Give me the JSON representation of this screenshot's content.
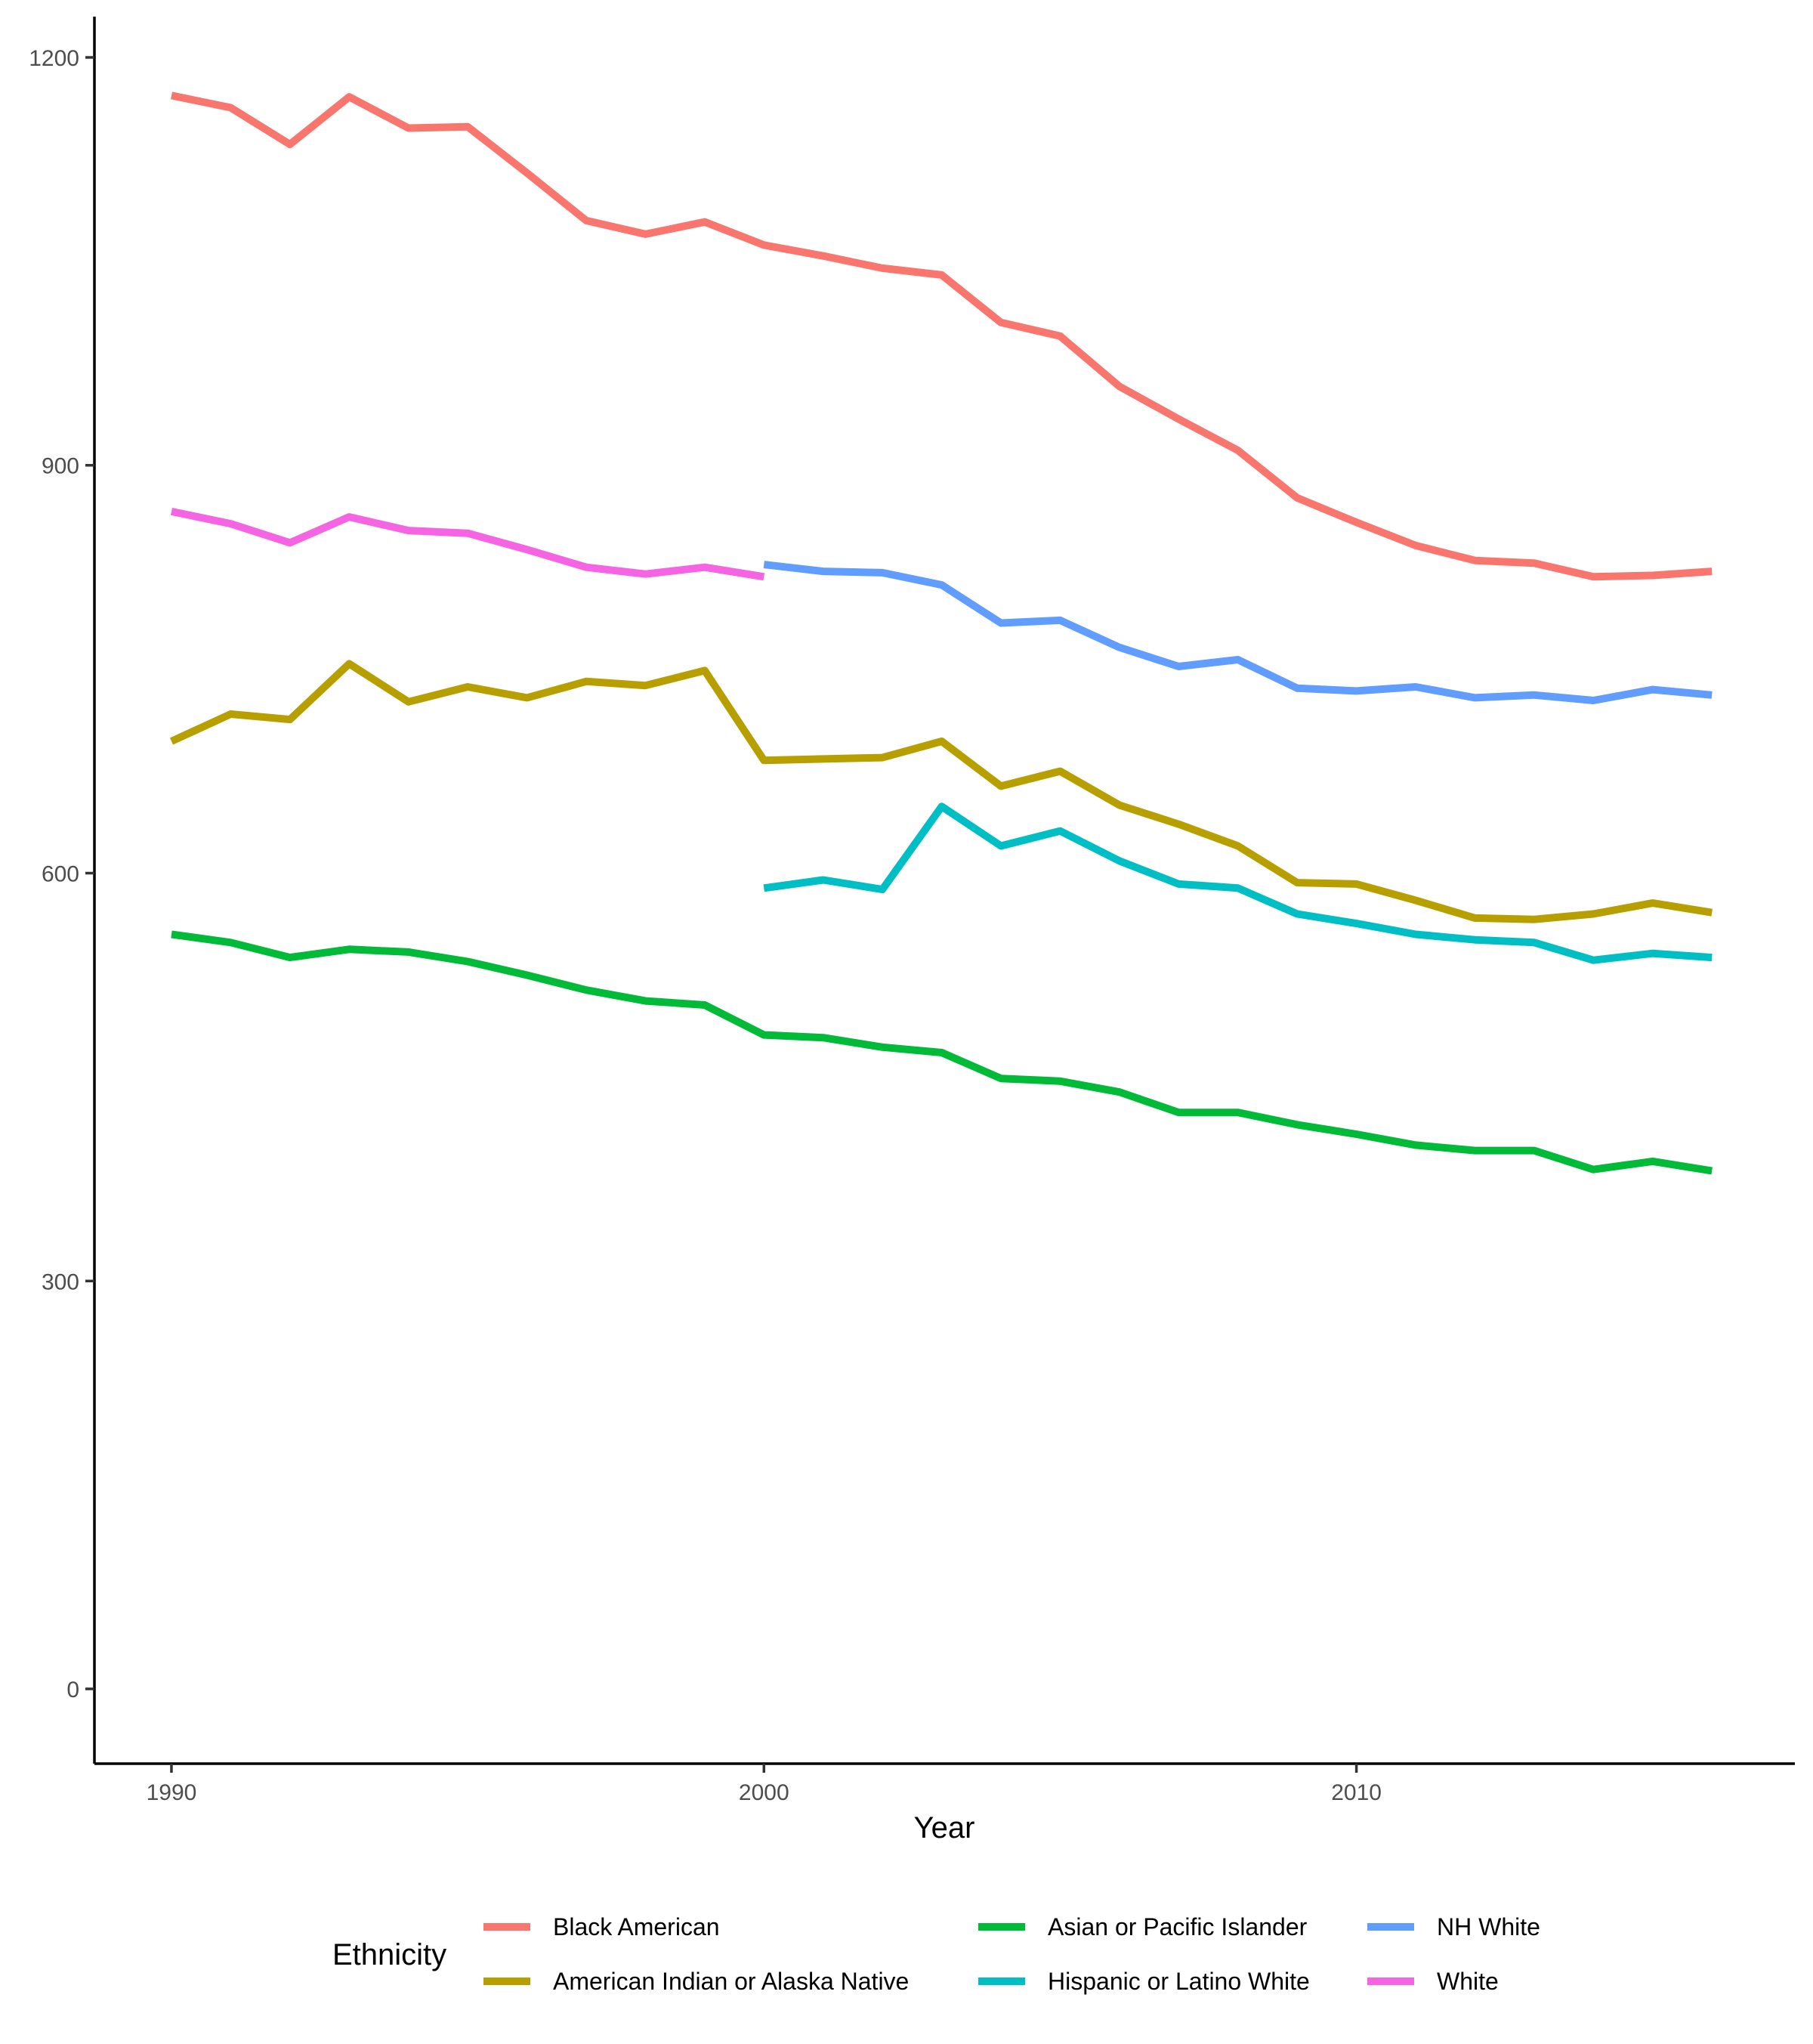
{
  "chart_data": {
    "type": "line",
    "title": "",
    "xlabel": "Year",
    "ylabel": "",
    "xlim": [
      1988.7,
      2017.4
    ],
    "ylim": [
      -55,
      1230
    ],
    "x_ticks": [
      1990,
      2000,
      2010
    ],
    "y_ticks": [
      0,
      300,
      600,
      900,
      1200
    ],
    "grid": false,
    "legend": {
      "title": "Ethnicity",
      "position": "bottom",
      "entries": [
        "Black American",
        "American Indian or Alaska Native",
        "Asian or Pacific Islander",
        "Hispanic or Latino White",
        "NH White",
        "White"
      ]
    },
    "series": [
      {
        "name": "Black American",
        "color": "#F8766D",
        "x": [
          1990,
          1991,
          1992,
          1993,
          1994,
          1995,
          1996,
          1997,
          1998,
          1999,
          2000,
          2001,
          2002,
          2003,
          2004,
          2005,
          2006,
          2007,
          2008,
          2009,
          2010,
          2011,
          2012,
          2013,
          2014,
          2015,
          2016
        ],
        "y": [
          1172,
          1163,
          1136,
          1171,
          1148,
          1149,
          1115,
          1080,
          1070,
          1079,
          1062,
          1054,
          1045,
          1040,
          1005,
          995,
          958,
          934,
          911,
          876,
          858,
          841,
          830,
          828,
          818,
          819,
          822
        ]
      },
      {
        "name": "American Indian or Alaska Native",
        "color": "#B79F00",
        "x": [
          1990,
          1991,
          1992,
          1993,
          1994,
          1995,
          1996,
          1997,
          1998,
          1999,
          2000,
          2001,
          2002,
          2003,
          2004,
          2005,
          2006,
          2007,
          2008,
          2009,
          2010,
          2011,
          2012,
          2013,
          2014,
          2015,
          2016
        ],
        "y": [
          697,
          717,
          713,
          754,
          726,
          737,
          729,
          741,
          738,
          749,
          683,
          684,
          685,
          697,
          664,
          675,
          650,
          636,
          620,
          593,
          592,
          580,
          567,
          566,
          570,
          578,
          571
        ]
      },
      {
        "name": "Asian or Pacific Islander",
        "color": "#00BA38",
        "x": [
          1990,
          1991,
          1992,
          1993,
          1994,
          1995,
          1996,
          1997,
          1998,
          1999,
          2000,
          2001,
          2002,
          2003,
          2004,
          2005,
          2006,
          2007,
          2008,
          2009,
          2010,
          2011,
          2012,
          2013,
          2014,
          2015,
          2016
        ],
        "y": [
          555,
          549,
          538,
          544,
          542,
          535,
          525,
          514,
          506,
          503,
          481,
          479,
          472,
          468,
          449,
          447,
          439,
          424,
          424,
          415,
          408,
          400,
          396,
          396,
          382,
          388,
          381
        ]
      },
      {
        "name": "Hispanic or Latino White",
        "color": "#00BFC4",
        "x": [
          2000,
          2001,
          2002,
          2003,
          2004,
          2005,
          2006,
          2007,
          2008,
          2009,
          2010,
          2011,
          2012,
          2013,
          2014,
          2015,
          2016
        ],
        "y": [
          589,
          595,
          588,
          649,
          620,
          631,
          609,
          592,
          589,
          570,
          563,
          555,
          551,
          549,
          536,
          541,
          538
        ]
      },
      {
        "name": "NH White",
        "color": "#619CFF",
        "x": [
          2000,
          2001,
          2002,
          2003,
          2004,
          2005,
          2006,
          2007,
          2008,
          2009,
          2010,
          2011,
          2012,
          2013,
          2014,
          2015,
          2016
        ],
        "y": [
          827,
          822,
          821,
          812,
          784,
          786,
          766,
          752,
          757,
          736,
          734,
          737,
          729,
          731,
          727,
          735,
          731
        ]
      },
      {
        "name": "White",
        "color": "#F564E3",
        "x": [
          1990,
          1991,
          1992,
          1993,
          1994,
          1995,
          1996,
          1997,
          1998,
          1999,
          2000
        ],
        "y": [
          866,
          857,
          843,
          862,
          852,
          850,
          838,
          825,
          820,
          825,
          818
        ]
      }
    ]
  }
}
